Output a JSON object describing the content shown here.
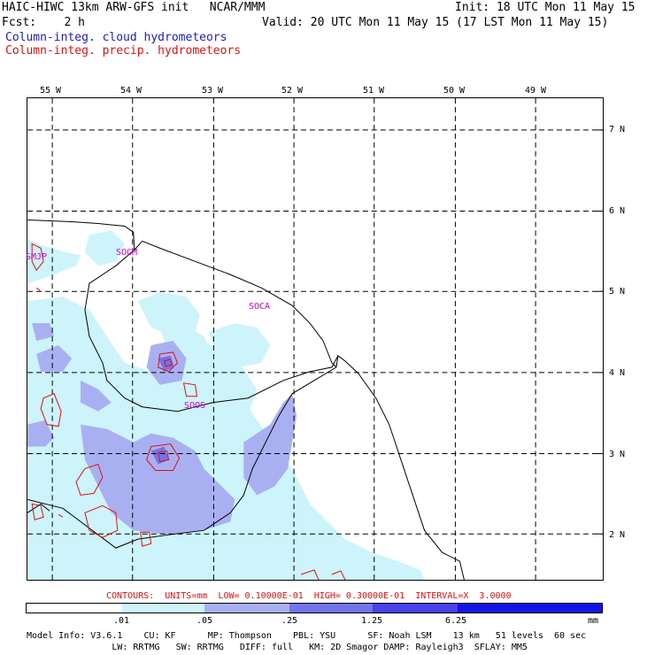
{
  "header": {
    "title": "HAIC-HIWC 13km ARW-GFS init   NCAR/MMM",
    "init": "Init: 18 UTC Mon 11 May 15",
    "fcst": "Fcst:    2 h",
    "valid": "Valid: 20 UTC Mon 11 May 15 (17 LST Mon 11 May 15)",
    "field_cloud": "Column-integ. cloud hydrometeors",
    "field_precip": "Column-integ. precip. hydrometeors"
  },
  "axes": {
    "lon_labels": [
      "55 W",
      "54 W",
      "53 W",
      "52 W",
      "51 W",
      "50 W",
      "49 W"
    ],
    "lat_labels": [
      "7 N",
      "6 N",
      "5 N",
      "4 N",
      "3 N",
      "2 N"
    ]
  },
  "stations": [
    "SMJP",
    "SOCM",
    "SOCA",
    "SOOS"
  ],
  "contour_info": "CONTOURS:  UNITS=mm  LOW= 0.10000E-01  HIGH= 0.30000E-01  INTERVAL=X  3.0000",
  "legend": {
    "labels": [
      ".01",
      ".05",
      ".25",
      "1.25",
      "6.25",
      "mm"
    ],
    "colors": [
      "#ffffff",
      "#ccf4fa",
      "#a9b0f2",
      "#7373ee",
      "#4a42ee",
      "#1414e6"
    ]
  },
  "model_info": {
    "line1": "Model Info: V3.6.1    CU: KF      MP: Thompson    PBL: YSU      SF: Noah LSM    13 km   51 levels  60 sec",
    "line2": "                LW: RRTMG   SW: RRTMG   DIFF: full   KM: 2D Smagor DAMP: Rayleigh3  SFLAY: MM5"
  },
  "colors": {
    "cloud_contour": "#1a1ad0",
    "precip_contour": "#e01010",
    "station": "#d000d0"
  }
}
